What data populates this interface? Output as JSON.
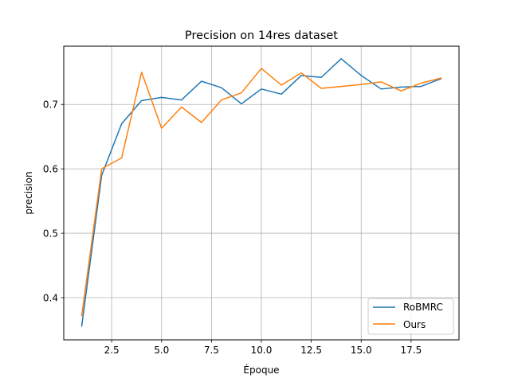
{
  "chart_data": {
    "type": "line",
    "title": "Precision on 14res dataset",
    "xlabel": "Époque",
    "ylabel": "precision",
    "xlim": [
      0.1,
      19.9
    ],
    "ylim": [
      0.3345,
      0.7905
    ],
    "xticks": [
      2.5,
      5.0,
      7.5,
      10.0,
      12.5,
      15.0,
      17.5
    ],
    "xtick_labels": [
      "2.5",
      "5.0",
      "7.5",
      "10.0",
      "12.5",
      "15.0",
      "17.5"
    ],
    "yticks": [
      0.4,
      0.5,
      0.6,
      0.7
    ],
    "ytick_labels": [
      "0.4",
      "0.5",
      "0.6",
      "0.7"
    ],
    "grid": true,
    "legend_position": "lower-right",
    "x": [
      1,
      2,
      3,
      4,
      5,
      6,
      7,
      8,
      9,
      10,
      11,
      12,
      13,
      14,
      15,
      16,
      17,
      18,
      19
    ],
    "series": [
      {
        "name": "RoBMRC",
        "color": "#1f77b4",
        "values": [
          0.356,
          0.59,
          0.67,
          0.706,
          0.711,
          0.707,
          0.736,
          0.726,
          0.701,
          0.724,
          0.716,
          0.745,
          0.742,
          0.771,
          0.745,
          0.724,
          0.727,
          0.728,
          0.74
        ]
      },
      {
        "name": "Ours",
        "color": "#ff7f0e",
        "values": [
          0.372,
          0.6,
          0.617,
          0.75,
          0.663,
          0.696,
          0.672,
          0.707,
          0.718,
          0.756,
          0.73,
          0.749,
          0.725,
          0.728,
          0.731,
          0.735,
          0.721,
          0.733,
          0.741
        ]
      }
    ]
  }
}
